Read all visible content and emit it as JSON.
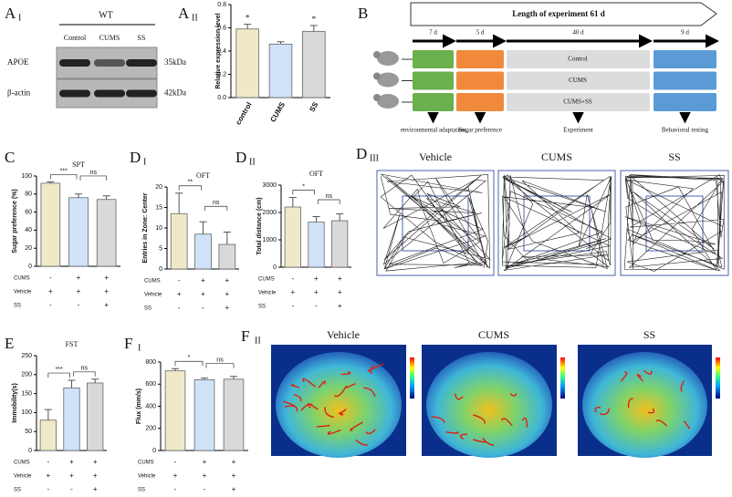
{
  "blot": {
    "label": "A",
    "sublabel": "I",
    "group": "WT",
    "lanes": [
      "Control",
      "CUMS",
      "SS"
    ],
    "rows": [
      {
        "name": "APOE",
        "size": "35kDa"
      },
      {
        "name": "β-actin",
        "size": "42kDa"
      }
    ]
  },
  "timeline": {
    "label": "B",
    "header": "Length of experiment 61 d",
    "durations": [
      "7 d",
      "5 d",
      "40 d",
      "9 d"
    ],
    "groups": [
      "Control",
      "CUMS",
      "CUMS+SS"
    ],
    "stages": [
      "environmental adaptation",
      "Sugar preference",
      "Experiment",
      "Behavioral testing"
    ]
  },
  "tracks": {
    "label": "D",
    "sublabel": "III",
    "groups": [
      "Vehicle",
      "CUMS",
      "SS"
    ]
  },
  "flux_images": {
    "label": "F",
    "sublabel": "II",
    "groups": [
      "Vehicle",
      "CUMS",
      "SS"
    ]
  },
  "chart_data": [
    {
      "type": "bar",
      "label": "A",
      "sublabel": "II",
      "ylabel": "Relative expression level",
      "categories": [
        "control",
        "CUMS",
        "SS"
      ],
      "values": [
        0.59,
        0.46,
        0.57
      ],
      "errors": [
        0.04,
        0.02,
        0.05
      ],
      "stars": [
        "*",
        null,
        "*"
      ],
      "colors": [
        "#efe9c8",
        "#cfe2f8",
        "#d9d9d9"
      ],
      "ylim": [
        0,
        0.8
      ],
      "yticks": [
        {
          "value": 0,
          "label": "0.0"
        },
        {
          "value": 0.2,
          "label": "0.2"
        },
        {
          "value": 0.4,
          "label": "0.4"
        },
        {
          "value": 0.6,
          "label": "0.6"
        },
        {
          "value": 0.8,
          "label": "0.8"
        }
      ]
    },
    {
      "type": "bar",
      "label": "C",
      "title": "SPT",
      "ylabel": "Sugar preference (%)",
      "values": [
        92,
        76,
        74
      ],
      "errors": [
        1.5,
        4,
        4
      ],
      "significance": [
        "***",
        "ns"
      ],
      "colors": [
        "#efe9c8",
        "#cfe2f8",
        "#d9d9d9"
      ],
      "ylim": [
        0,
        100
      ],
      "yticks": [
        0,
        20,
        40,
        60,
        80,
        100
      ],
      "treatments": [
        {
          "name": "CUMS",
          "signs": [
            "-",
            "+",
            "+"
          ]
        },
        {
          "name": "Vehicle",
          "signs": [
            "+",
            "+",
            "+"
          ]
        },
        {
          "name": "SS",
          "signs": [
            "-",
            "-",
            "+"
          ]
        }
      ]
    },
    {
      "type": "bar",
      "label": "D",
      "sublabel": "I",
      "title": "OFT",
      "ylabel": "Entries in Zone: Center",
      "values": [
        13.5,
        8.5,
        6
      ],
      "errors": [
        5,
        3,
        3
      ],
      "significance": [
        "**",
        "ns"
      ],
      "colors": [
        "#efe9c8",
        "#cfe2f8",
        "#d9d9d9"
      ],
      "ylim": [
        0,
        20
      ],
      "yticks": [
        0,
        5,
        10,
        15,
        20
      ],
      "treatments": [
        {
          "name": "CUMS",
          "signs": [
            "-",
            "+",
            "+"
          ]
        },
        {
          "name": "Vehicle",
          "signs": [
            "+",
            "+",
            "+"
          ]
        },
        {
          "name": "SS",
          "signs": [
            "-",
            "-",
            "+"
          ]
        }
      ]
    },
    {
      "type": "bar",
      "label": "D",
      "sublabel": "II",
      "title": "OFT",
      "ylabel": "Total distance (cm)",
      "values": [
        2200,
        1650,
        1700
      ],
      "errors": [
        350,
        200,
        250
      ],
      "significance": [
        "*",
        "ns"
      ],
      "colors": [
        "#efe9c8",
        "#cfe2f8",
        "#d9d9d9"
      ],
      "ylim": [
        0,
        3000
      ],
      "yticks": [
        0,
        1000,
        2000,
        3000
      ],
      "treatments": [
        {
          "name": "CUMS",
          "signs": [
            "-",
            "+",
            "+"
          ]
        },
        {
          "name": "Vehicle",
          "signs": [
            "+",
            "+",
            "+"
          ]
        },
        {
          "name": "SS",
          "signs": [
            "-",
            "-",
            "+"
          ]
        }
      ]
    },
    {
      "type": "bar",
      "label": "E",
      "title": "FST",
      "ylabel": "Immobility(s)",
      "values": [
        80,
        165,
        178
      ],
      "errors": [
        28,
        20,
        10
      ],
      "significance": [
        "***",
        "ns"
      ],
      "colors": [
        "#efe9c8",
        "#cfe2f8",
        "#d9d9d9"
      ],
      "ylim": [
        0,
        250
      ],
      "yticks": [
        0,
        50,
        100,
        150,
        200,
        250
      ],
      "treatments": [
        {
          "name": "CUMS",
          "signs": [
            "-",
            "+",
            "+"
          ]
        },
        {
          "name": "Vehicle",
          "signs": [
            "+",
            "+",
            "+"
          ]
        },
        {
          "name": "SS",
          "signs": [
            "-",
            "-",
            "+"
          ]
        }
      ]
    },
    {
      "type": "bar",
      "label": "F",
      "sublabel": "I",
      "ylabel": "Flux (mm/s)",
      "values": [
        720,
        640,
        645
      ],
      "errors": [
        20,
        15,
        25
      ],
      "significance": [
        "*",
        "ns"
      ],
      "colors": [
        "#efe9c8",
        "#cfe2f8",
        "#d9d9d9"
      ],
      "ylim": [
        0,
        800
      ],
      "yticks": [
        0,
        200,
        400,
        600,
        800
      ],
      "treatments": [
        {
          "name": "CUMS",
          "signs": [
            "-",
            "+",
            "+"
          ]
        },
        {
          "name": "Vehicle",
          "signs": [
            "+",
            "+",
            "+"
          ]
        },
        {
          "name": "SS",
          "signs": [
            "-",
            "-",
            "+"
          ]
        }
      ]
    }
  ]
}
